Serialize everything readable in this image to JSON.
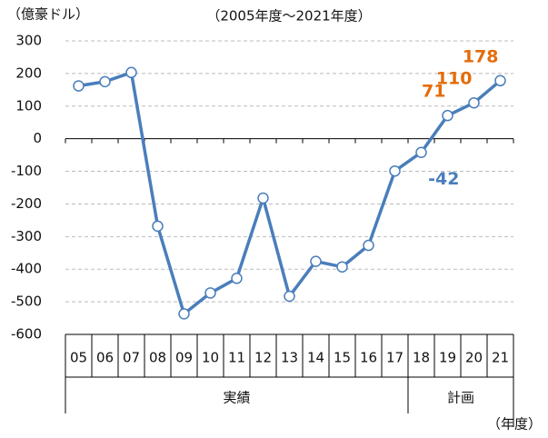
{
  "chart_data": {
    "type": "line",
    "y_axis_label": "（億豪ドル）",
    "subtitle": "（2005年度～2021年度）",
    "x_axis_label": "（年度）",
    "categories": [
      "05",
      "06",
      "07",
      "08",
      "09",
      "10",
      "11",
      "12",
      "13",
      "14",
      "15",
      "16",
      "17",
      "18",
      "19",
      "20",
      "21"
    ],
    "series": [
      {
        "name": null,
        "color": "#4a7ebb",
        "values": [
          162,
          175,
          203,
          -268,
          -537,
          -473,
          -428,
          -182,
          -483,
          -376,
          -393,
          -327,
          -99,
          -42,
          71,
          110,
          178
        ],
        "value_labels": [
          null,
          null,
          null,
          null,
          null,
          null,
          null,
          null,
          null,
          null,
          null,
          null,
          null,
          "-42",
          "71",
          "110",
          "178"
        ],
        "value_label_colors": [
          null,
          null,
          null,
          null,
          null,
          null,
          null,
          null,
          null,
          null,
          null,
          null,
          null,
          "#4a7ebb",
          "#e46c0a",
          "#e46c0a",
          "#e46c0a"
        ]
      }
    ],
    "groups": [
      {
        "label": "実績",
        "count": 13
      },
      {
        "label": "計画",
        "count": 4
      }
    ],
    "ylim": [
      -600,
      300
    ],
    "yticks": [
      -600,
      -500,
      -400,
      -300,
      -200,
      -100,
      0,
      100,
      200,
      300
    ],
    "grid": true
  }
}
